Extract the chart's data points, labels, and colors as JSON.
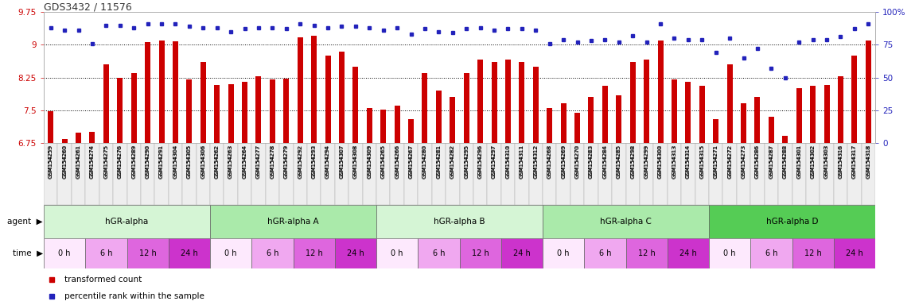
{
  "title": "GDS3432 / 11576",
  "ylim_left": [
    6.75,
    9.75
  ],
  "ylim_right": [
    0,
    100
  ],
  "yticks_left": [
    6.75,
    7.5,
    8.25,
    9.0,
    9.75
  ],
  "ytick_labels_left": [
    "6.75",
    "7.5",
    "8.25",
    "9",
    "9.75"
  ],
  "ytick_labels_right": [
    "0",
    "25",
    "50",
    "75",
    "100%"
  ],
  "yticks_right": [
    0,
    25,
    50,
    75,
    100
  ],
  "gsm_labels": [
    "GSM154259",
    "GSM154260",
    "GSM154261",
    "GSM154274",
    "GSM154275",
    "GSM154276",
    "GSM154289",
    "GSM154290",
    "GSM154291",
    "GSM154304",
    "GSM154305",
    "GSM154306",
    "GSM154262",
    "GSM154263",
    "GSM154264",
    "GSM154277",
    "GSM154278",
    "GSM154279",
    "GSM154292",
    "GSM154293",
    "GSM154294",
    "GSM154307",
    "GSM154308",
    "GSM154309",
    "GSM154265",
    "GSM154266",
    "GSM154267",
    "GSM154280",
    "GSM154281",
    "GSM154282",
    "GSM154295",
    "GSM154296",
    "GSM154297",
    "GSM154310",
    "GSM154311",
    "GSM154312",
    "GSM154268",
    "GSM154269",
    "GSM154270",
    "GSM154283",
    "GSM154284",
    "GSM154285",
    "GSM154298",
    "GSM154299",
    "GSM154300",
    "GSM154313",
    "GSM154314",
    "GSM154315",
    "GSM154271",
    "GSM154272",
    "GSM154273",
    "GSM154286",
    "GSM154287",
    "GSM154288",
    "GSM154301",
    "GSM154302",
    "GSM154303",
    "GSM154316",
    "GSM154317",
    "GSM154318"
  ],
  "red_values": [
    7.47,
    6.85,
    6.98,
    7.0,
    8.55,
    8.25,
    8.35,
    9.05,
    9.1,
    9.07,
    8.2,
    8.6,
    8.08,
    8.1,
    8.15,
    8.28,
    8.2,
    8.22,
    9.17,
    9.2,
    8.75,
    8.85,
    8.5,
    7.55,
    7.52,
    7.6,
    7.3,
    8.35,
    7.95,
    7.8,
    8.35,
    8.65,
    8.6,
    8.65,
    8.6,
    8.5,
    7.55,
    7.65,
    7.45,
    7.8,
    8.05,
    7.85,
    8.6,
    8.65,
    9.1,
    8.2,
    8.15,
    8.05,
    7.3,
    8.55,
    7.65,
    7.8,
    7.35,
    6.92,
    8.0,
    8.05,
    8.07,
    8.28,
    8.75,
    9.1
  ],
  "blue_values": [
    88,
    86,
    86,
    76,
    90,
    90,
    88,
    91,
    91,
    91,
    89,
    88,
    88,
    85,
    87,
    88,
    88,
    87,
    91,
    90,
    88,
    89,
    89,
    88,
    86,
    88,
    83,
    87,
    85,
    84,
    87,
    88,
    86,
    87,
    87,
    86,
    76,
    79,
    77,
    78,
    79,
    77,
    82,
    77,
    91,
    80,
    79,
    79,
    69,
    80,
    65,
    72,
    57,
    50,
    77,
    79,
    79,
    81,
    87,
    91
  ],
  "agent_groups": [
    {
      "label": "hGR-alpha",
      "start": 0,
      "end": 12,
      "color": "#d5f5d5"
    },
    {
      "label": "hGR-alpha A",
      "start": 12,
      "end": 24,
      "color": "#aaeaaa"
    },
    {
      "label": "hGR-alpha B",
      "start": 24,
      "end": 36,
      "color": "#d5f5d5"
    },
    {
      "label": "hGR-alpha C",
      "start": 36,
      "end": 48,
      "color": "#aaeaaa"
    },
    {
      "label": "hGR-alpha D",
      "start": 48,
      "end": 60,
      "color": "#55cc55"
    }
  ],
  "time_colors": {
    "0 h": "#fde9fd",
    "6 h": "#f0a8f0",
    "12 h": "#de66de",
    "24 h": "#cc33cc"
  },
  "bar_color": "#cc0000",
  "dot_color": "#2222bb",
  "left_axis_color": "#cc0000",
  "right_axis_color": "#2222bb"
}
